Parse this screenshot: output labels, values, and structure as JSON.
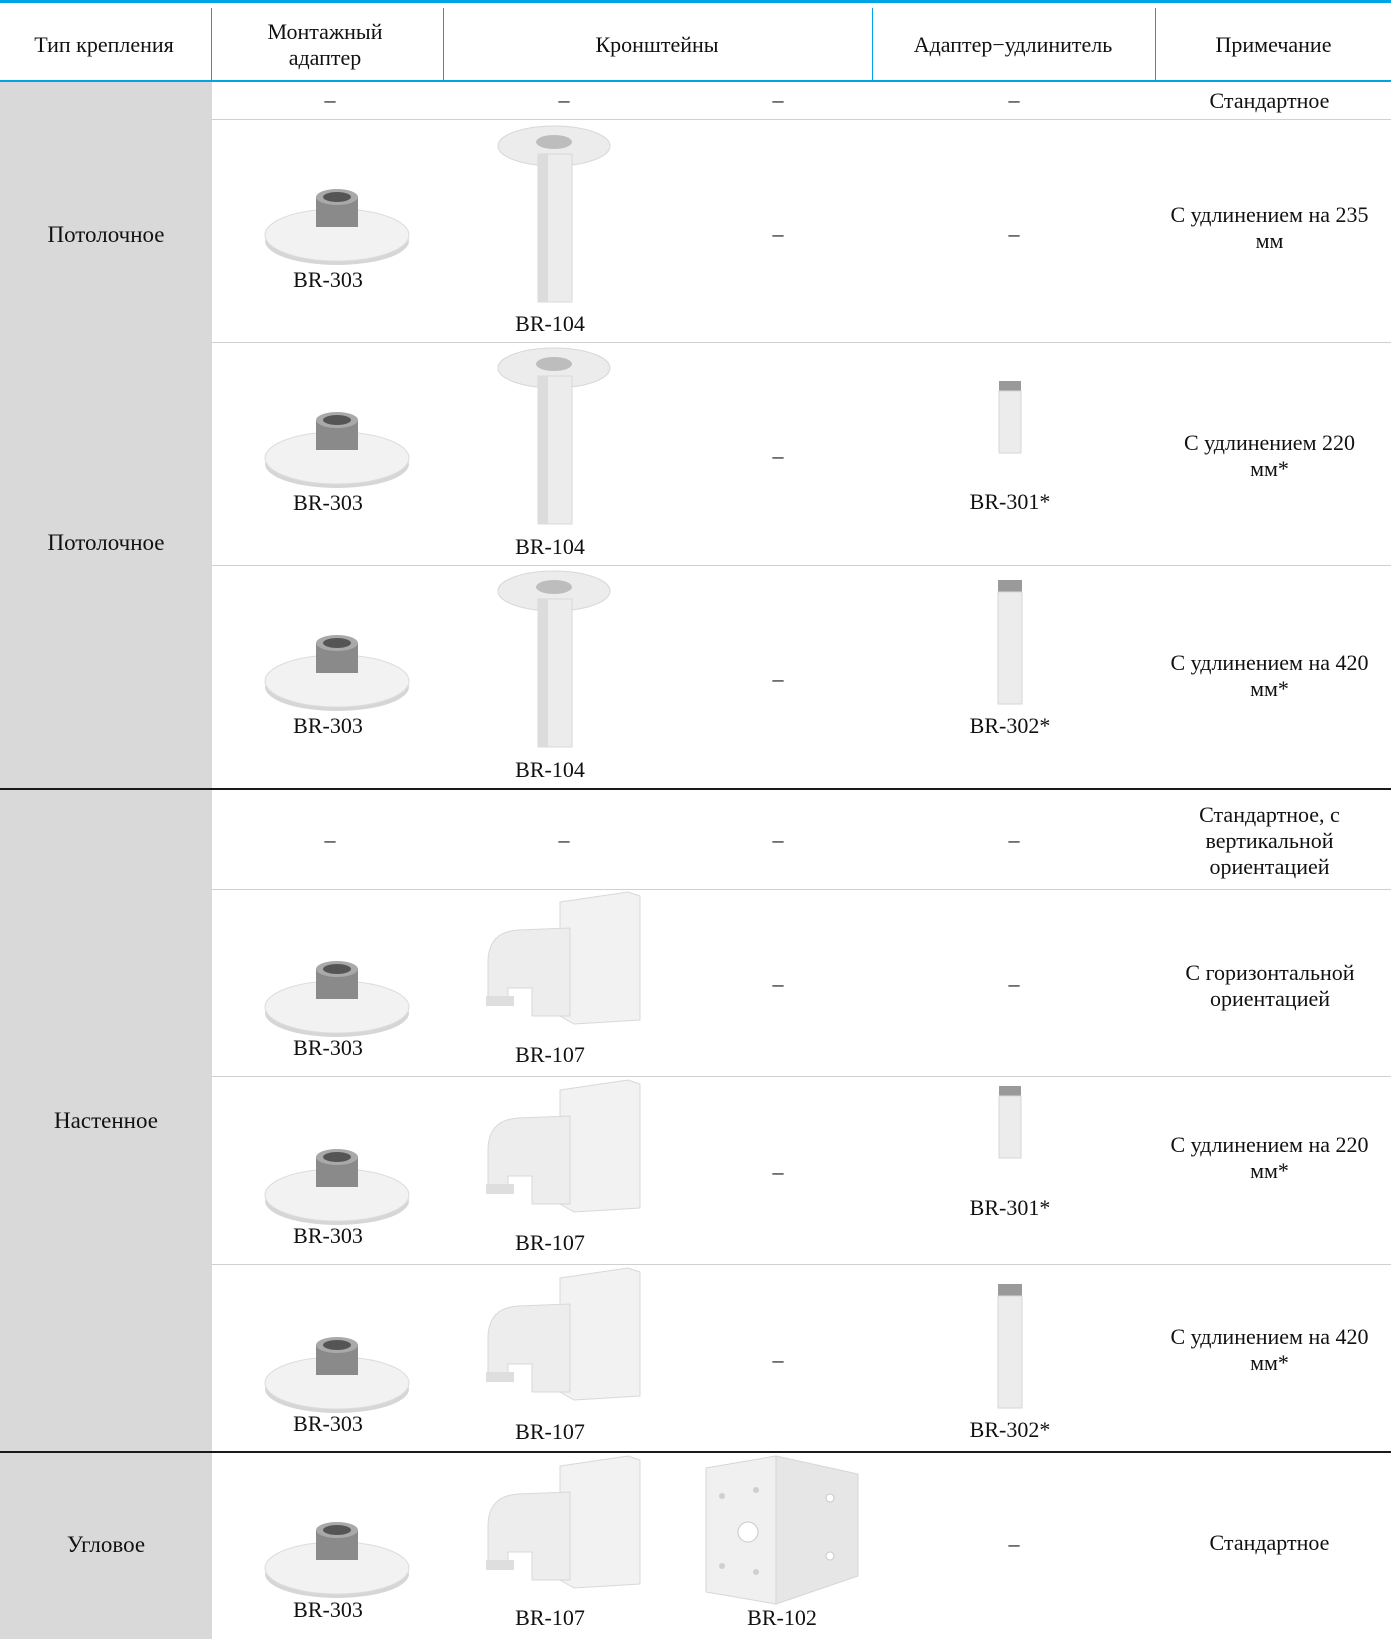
{
  "header": {
    "col_type": "Тип крепления",
    "col_adapter": "Монтажный адаптер",
    "col_brackets": "Кронштейны",
    "col_extension": "Адаптер−удлинитель",
    "col_note": "Примечание"
  },
  "labels": {
    "dash": "–",
    "br303": "BR-303",
    "br104": "BR-104",
    "br107": "BR-107",
    "br102": "BR-102",
    "br301": "BR-301*",
    "br302": "BR-302*"
  },
  "groups": {
    "ceiling_a": "Потолочное",
    "ceiling_b": "Потолочное",
    "wall": "Настенное",
    "corner": "Угловое"
  },
  "notes": {
    "r1": "Стандартное",
    "r2": "С удлинением на 235 мм",
    "r3": "С удлинением 220 мм*",
    "r4": "С удлинением на 420 мм*",
    "r5": "Стандартное, с вертикальной ориентацией",
    "r6": "С горизонтальной ориентацией",
    "r7": "С удлинением на 220 мм*",
    "r8": "С удлинением на 420 мм*",
    "r9": "Стандартное"
  },
  "colors": {
    "accent": "#00a4e4",
    "first_column_bg": "#d9d9d9",
    "product": "#f2f2f2"
  },
  "icons": [
    "mount-adapter-icon",
    "pendant-bracket-icon",
    "wall-bracket-icon",
    "corner-bracket-icon",
    "extension-pipe-short-icon",
    "extension-pipe-long-icon"
  ]
}
